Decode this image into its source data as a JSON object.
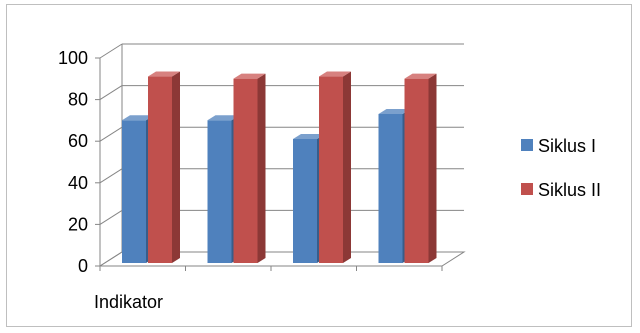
{
  "chart_data": {
    "type": "bar",
    "style": "3d-clustered-column",
    "categories": [
      "",
      "",
      "",
      ""
    ],
    "series": [
      {
        "name": "Siklus I",
        "values": [
          72,
          72,
          63,
          75
        ],
        "color": "#4f81bd",
        "side_color": "#385d8a",
        "top_color": "#7ba0cd"
      },
      {
        "name": "Siklus II",
        "values": [
          93,
          92,
          93,
          92
        ],
        "color": "#c0504d",
        "side_color": "#8c3836",
        "top_color": "#d7817f"
      }
    ],
    "title": "",
    "xlabel": "Indikator",
    "ylabel": "",
    "ylim": [
      0,
      100
    ],
    "yticks": [
      0,
      20,
      40,
      60,
      80,
      100
    ],
    "grid": true,
    "legend_position": "right"
  }
}
